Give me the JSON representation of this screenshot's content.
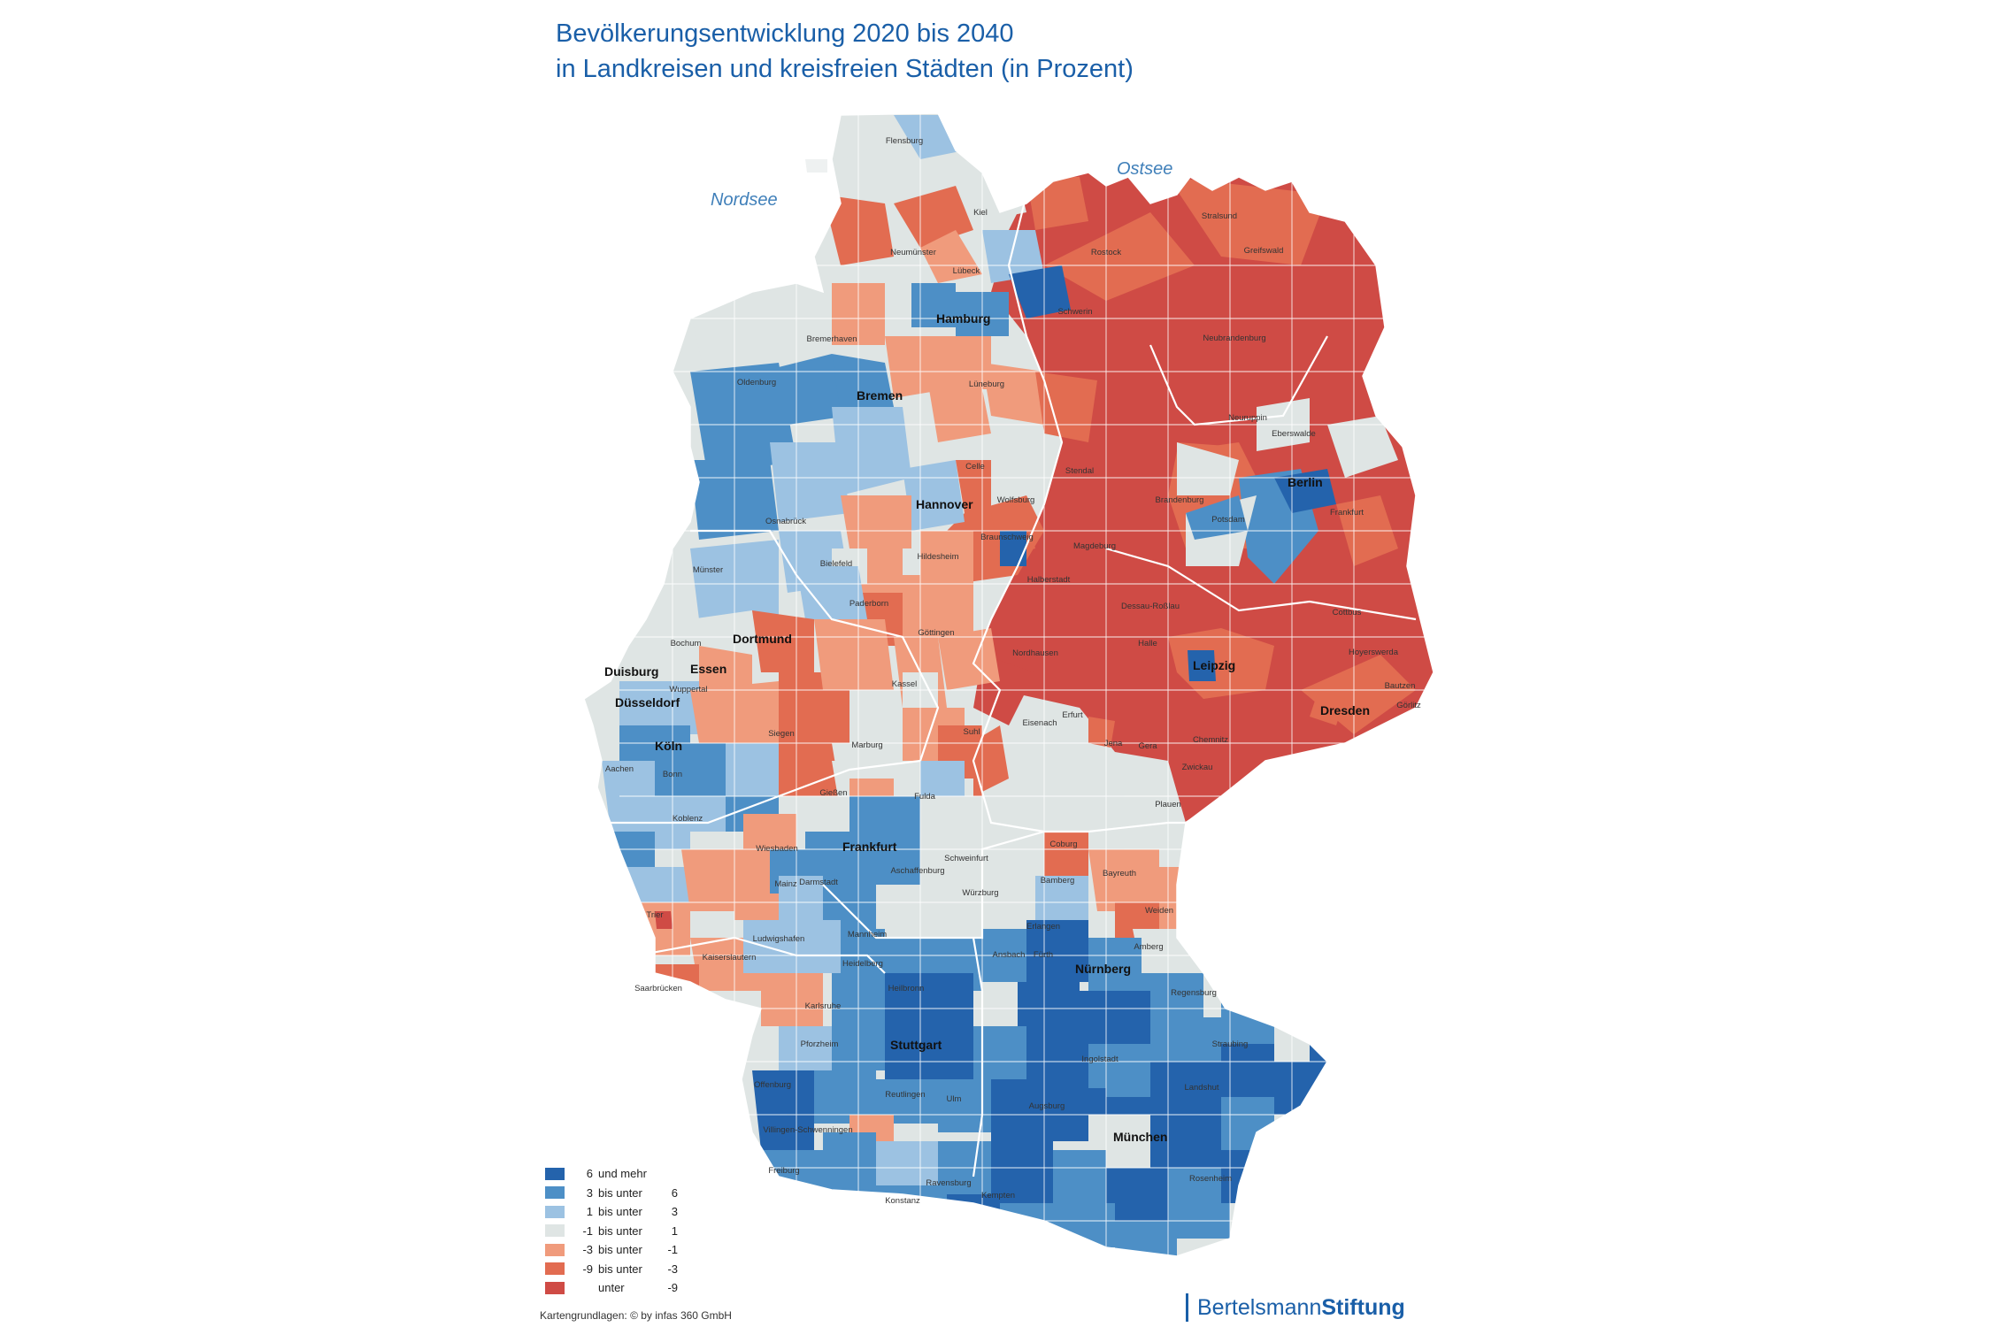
{
  "title": {
    "line1": "Bevölkerungsentwicklung 2020 bis 2040",
    "line2": "in Landkreisen und kreisfreien Städten (in Prozent)"
  },
  "seas": {
    "nordsee": "Nordsee",
    "ostsee": "Ostsee"
  },
  "colors": {
    "c6plus": "#2463ac",
    "c3to6": "#4d8fc6",
    "c1to3": "#9cc2e2",
    "cm1to1": "#dfe5e4",
    "cm3tom1": "#f09b7c",
    "cm9tom3": "#e26c51",
    "cbelowm9": "#cf4b45"
  },
  "legend": [
    {
      "lo": "6",
      "mid": "und mehr",
      "hi": "",
      "color": "#2463ac"
    },
    {
      "lo": "3",
      "mid": "bis unter",
      "hi": "6",
      "color": "#4d8fc6"
    },
    {
      "lo": "1",
      "mid": "bis unter",
      "hi": "3",
      "color": "#9cc2e2"
    },
    {
      "lo": "-1",
      "mid": "bis unter",
      "hi": "1",
      "color": "#dfe5e4"
    },
    {
      "lo": "-3",
      "mid": "bis unter",
      "hi": "-1",
      "color": "#f09b7c"
    },
    {
      "lo": "-9",
      "mid": "bis unter",
      "hi": "-3",
      "color": "#e26c51"
    },
    {
      "lo": "",
      "mid": "unter",
      "hi": "-9",
      "color": "#cf4b45"
    }
  ],
  "cities_major": [
    "Hamburg",
    "Bremen",
    "Hannover",
    "Berlin",
    "Dortmund",
    "Essen",
    "Duisburg",
    "Düsseldorf",
    "Köln",
    "Leipzig",
    "Dresden",
    "Frankfurt",
    "Stuttgart",
    "Nürnberg",
    "München"
  ],
  "cities_minor": [
    "Flensburg",
    "Kiel",
    "Neumünster",
    "Lübeck",
    "Stralsund",
    "Rostock",
    "Greifswald",
    "Schwerin",
    "Neubrandenburg",
    "Bremerhaven",
    "Oldenburg",
    "Lüneburg",
    "Neuruppin",
    "Eberswalde",
    "Celle",
    "Wolfsburg",
    "Brandenburg",
    "Potsdam",
    "Frankfurt",
    "Osnabrück",
    "Bielefeld",
    "Hildesheim",
    "Braunschweig",
    "Magdeburg",
    "Stendal",
    "Münster",
    "Paderborn",
    "Halberstadt",
    "Dessau-Roßlau",
    "Cottbus",
    "Bochum",
    "Göttingen",
    "Nordhausen",
    "Halle",
    "Hoyerswerda",
    "Wuppertal",
    "Kassel",
    "Bautzen",
    "Görlitz",
    "Siegen",
    "Eisenach",
    "Erfurt",
    "Jena",
    "Gera",
    "Chemnitz",
    "Zwickau",
    "Aachen",
    "Bonn",
    "Marburg",
    "Gießen",
    "Fulda",
    "Koblenz",
    "Plauen",
    "Suhl",
    "Coburg",
    "Wiesbaden",
    "Mainz",
    "Darmstadt",
    "Aschaffenburg",
    "Schweinfurt",
    "Würzburg",
    "Bayreuth",
    "Bamberg",
    "Trier",
    "Ludwigshafen",
    "Mannheim",
    "Heidelberg",
    "Erlangen",
    "Fürth",
    "Amberg",
    "Weiden",
    "Kaiserslautern",
    "Saarbrücken",
    "Ansbach",
    "Heilbronn",
    "Regensburg",
    "Karlsruhe",
    "Pforzheim",
    "Straubing",
    "Ingolstadt",
    "Landshut",
    "Offenburg",
    "Reutlingen",
    "Ulm",
    "Augsburg",
    "Villingen-Schwenningen",
    "Freiburg",
    "Ravensburg",
    "Kempten",
    "Rosenheim",
    "Konstanz"
  ],
  "source": "Kartengrundlagen: © by infas 360 GmbH",
  "brand": {
    "part1": "Bertelsmann",
    "part2": "Stiftung"
  }
}
